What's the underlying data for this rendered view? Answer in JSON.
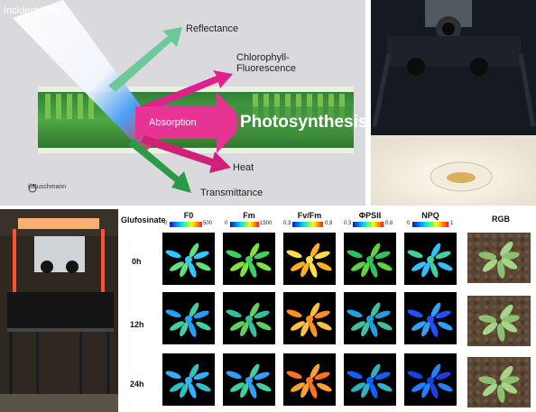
{
  "diagram": {
    "incident_light": "Incident light",
    "reflectance": "Reflectance",
    "chlorophyll_fluorescence": "Chlorophyll-\nFluorescence",
    "absorption": "Absorption",
    "photosynthesis": "Photosynthesis",
    "heat": "Heat",
    "transmittance": "Transmittance",
    "copyright": "©Buschmann"
  },
  "grid": {
    "treatment_label": "Glufosinate",
    "columns": [
      {
        "title": "F0",
        "min": "0",
        "max": "500"
      },
      {
        "title": "Fm",
        "min": "0",
        "max": "1500"
      },
      {
        "title": "Fv/Fm",
        "min": "0.3",
        "max": "0.9"
      },
      {
        "title": "ΦPSII",
        "min": "0.3",
        "max": "0.8"
      },
      {
        "title": "NPQ",
        "min": "0",
        "max": "1"
      },
      {
        "title": "RGB",
        "min": "",
        "max": ""
      }
    ],
    "rows": [
      "0h",
      "12h",
      "24h"
    ]
  }
}
